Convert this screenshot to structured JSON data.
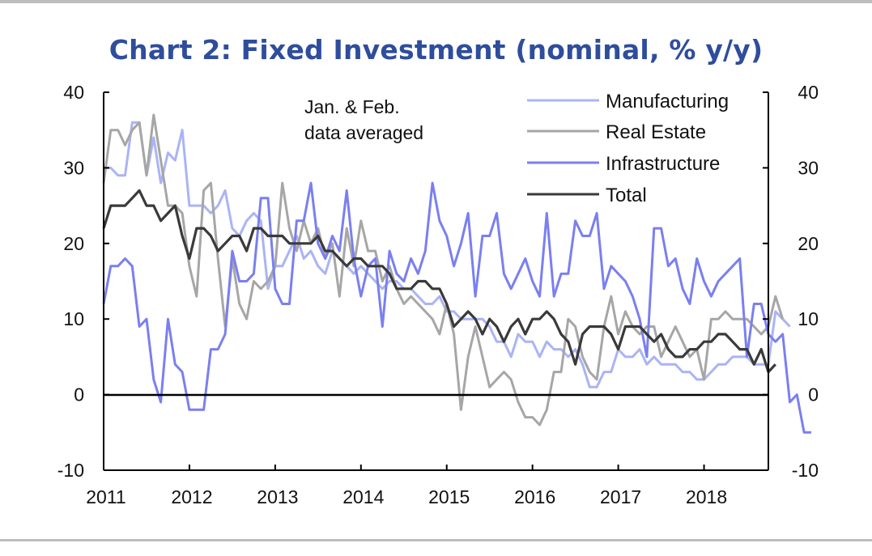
{
  "chart_data": {
    "type": "line",
    "title": "Chart 2: Fixed Investment (nominal, % y/y)",
    "annotation": [
      "Jan. & Feb.",
      "data averaged"
    ],
    "xlabel": "",
    "ylabel": "",
    "ylim": [
      -10,
      40
    ],
    "yticks": [
      "-10",
      "0",
      "10",
      "20",
      "30",
      "40"
    ],
    "yticks_right": [
      "-10",
      "0",
      "10",
      "20",
      "30",
      "40"
    ],
    "x_start": 2011.0,
    "x_step": 0.0833333,
    "xlim": [
      2011.0,
      2018.75
    ],
    "xtick_values": [
      2011,
      2012,
      2013,
      2014,
      2015,
      2016,
      2017,
      2018
    ],
    "xticks": [
      "2011",
      "2012",
      "2013",
      "2014",
      "2015",
      "2016",
      "2017",
      "2018"
    ],
    "colors": {
      "Manufacturing": "#aab4f5",
      "Real Estate": "#a6a6a6",
      "Infrastructure": "#7a7ff0",
      "Total": "#3a3a3a",
      "title": "#2e4d9c",
      "axis": "#000000"
    },
    "series": [
      {
        "name": "Manufacturing",
        "values": [
          30,
          30,
          29,
          29,
          36,
          36,
          29,
          34,
          28,
          32,
          31,
          35,
          25,
          25,
          25,
          24,
          25,
          27,
          22,
          21,
          23,
          24,
          23,
          14,
          17,
          17,
          19,
          21,
          18,
          19,
          17,
          16,
          19,
          18,
          17,
          16,
          17,
          16,
          15,
          14,
          15,
          15,
          14,
          14,
          13,
          12,
          12,
          13,
          11,
          11,
          10,
          10,
          10,
          10,
          9,
          7,
          7,
          5,
          8,
          7,
          7,
          5,
          7,
          6,
          6,
          5,
          6,
          4,
          1,
          1,
          3,
          3,
          6,
          5,
          5,
          6,
          4,
          5,
          4,
          4,
          4,
          3,
          3,
          2,
          2,
          3,
          4,
          4,
          5,
          5,
          5,
          4,
          4,
          4,
          11,
          10,
          9
        ]
      },
      {
        "name": "Real Estate",
        "values": [
          28,
          35,
          35,
          33,
          35,
          36,
          29,
          37,
          31,
          25,
          25,
          24,
          17,
          13,
          27,
          28,
          18,
          9,
          18,
          12,
          10,
          15,
          14,
          15,
          17,
          28,
          22,
          19,
          23,
          20,
          22,
          18,
          20,
          13,
          22,
          17,
          23,
          19,
          19,
          15,
          17,
          14,
          12,
          13,
          12,
          11,
          10,
          8,
          12,
          8,
          -2,
          5,
          9,
          5,
          1,
          2,
          3,
          2,
          -1,
          -3,
          -3,
          -4,
          -2,
          3,
          3,
          10,
          9,
          5,
          3,
          2,
          9,
          13,
          8,
          11,
          9,
          8,
          9,
          9,
          5,
          7,
          9,
          7,
          5,
          6,
          2,
          10,
          10,
          11,
          10,
          10,
          10,
          9,
          8,
          9,
          13,
          10
        ]
      },
      {
        "name": "Infrastructure",
        "values": [
          12,
          17,
          17,
          18,
          17,
          9,
          10,
          2,
          -1,
          10,
          4,
          3,
          -2,
          -2,
          -2,
          6,
          6,
          8,
          19,
          15,
          15,
          16,
          26,
          26,
          14,
          12,
          12,
          23,
          23,
          28,
          20,
          18,
          21,
          19,
          27,
          18,
          13,
          17,
          18,
          9,
          19,
          16,
          15,
          18,
          16,
          19,
          28,
          23,
          21,
          17,
          20,
          24,
          13,
          21,
          21,
          24,
          16,
          14,
          16,
          18,
          15,
          13,
          24,
          13,
          16,
          16,
          23,
          21,
          21,
          24,
          14,
          17,
          16,
          15,
          13,
          10,
          5,
          22,
          22,
          17,
          18,
          14,
          12,
          18,
          15,
          13,
          15,
          16,
          17,
          18,
          5,
          12,
          12,
          8,
          7,
          8,
          -1,
          0,
          -5,
          -5
        ]
      },
      {
        "name": "Total",
        "values": [
          22,
          25,
          25,
          25,
          26,
          27,
          25,
          25,
          23,
          24,
          25,
          21,
          18,
          22,
          22,
          21,
          19,
          20,
          21,
          21,
          19,
          22,
          22,
          21,
          21,
          21,
          20,
          20,
          20,
          20,
          21,
          19,
          19,
          18,
          17,
          18,
          18,
          17,
          17,
          17,
          16,
          14,
          14,
          14,
          15,
          15,
          14,
          14,
          12,
          9,
          10,
          11,
          10,
          8,
          10,
          9,
          7,
          9,
          10,
          8,
          10,
          10,
          11,
          10,
          8,
          7,
          4,
          8,
          9,
          9,
          9,
          8,
          6,
          9,
          9,
          9,
          8,
          7,
          8,
          6,
          5,
          5,
          6,
          6,
          7,
          7,
          8,
          8,
          7,
          6,
          6,
          4,
          6,
          3,
          4
        ]
      }
    ],
    "legend_position": "top-right"
  }
}
